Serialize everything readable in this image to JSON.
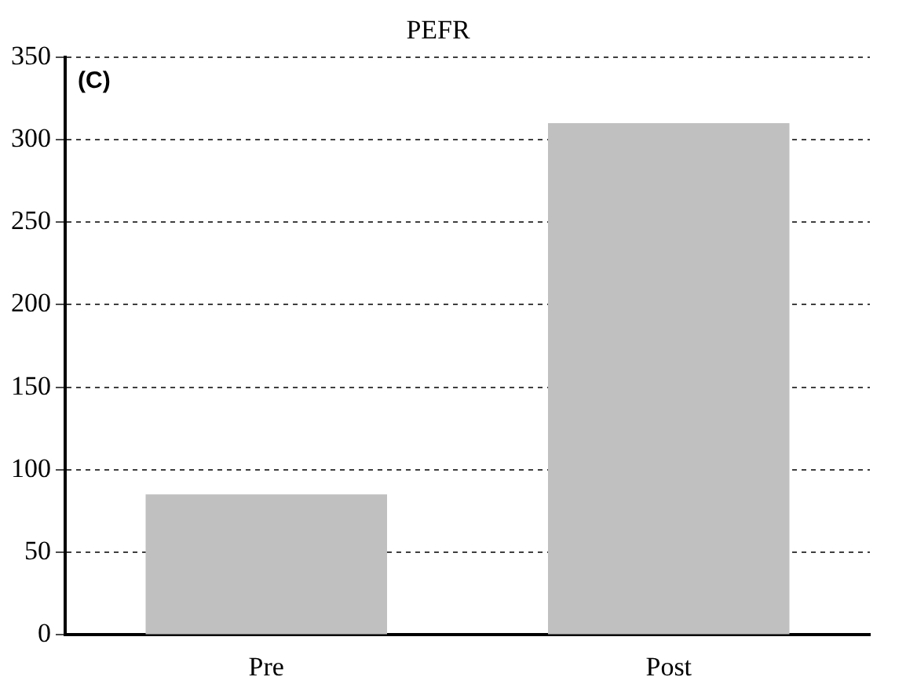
{
  "chart_data": {
    "type": "bar",
    "title": "PEFR",
    "categories": [
      "Pre",
      "Post"
    ],
    "values": [
      85,
      310
    ],
    "color": "#c0c0c0",
    "ylim": [
      0,
      350
    ],
    "yticks": [
      0,
      50,
      100,
      150,
      200,
      250,
      300,
      350
    ],
    "grid": "y",
    "annotations": [
      "(C)"
    ]
  }
}
